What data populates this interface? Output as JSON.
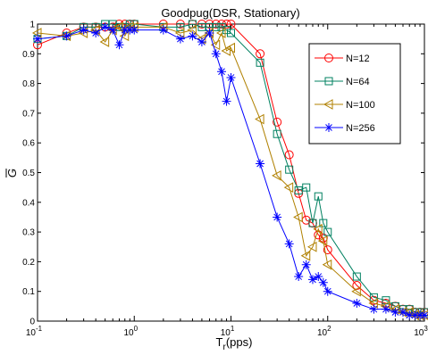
{
  "chart_data": {
    "type": "line",
    "title": "Goodpug(DSR, Stationary)",
    "xlabel": "T",
    "xlabel_sub": "r",
    "xlabel_suffix": "(pps)",
    "ylabel": "G",
    "ylabel_overline": true,
    "xscale": "log",
    "xlim": [
      0.1,
      1000
    ],
    "ylim": [
      0,
      1
    ],
    "xticks": [
      0.1,
      1,
      10,
      100,
      1000
    ],
    "xtick_labels": [
      {
        "base": "10",
        "exp": "-1"
      },
      {
        "base": "10",
        "exp": "0"
      },
      {
        "base": "10",
        "exp": "1"
      },
      {
        "base": "10",
        "exp": "2"
      },
      {
        "base": "10",
        "exp": "3"
      }
    ],
    "yticks": [
      0,
      0.1,
      0.2,
      0.3,
      0.4,
      0.5,
      0.6,
      0.7,
      0.8,
      0.9,
      1
    ],
    "ytick_labels": [
      "0",
      "0.1",
      "0.2",
      "0.3",
      "0.4",
      "0.5",
      "0.6",
      "0.7",
      "0.8",
      "0.9",
      "1"
    ],
    "grid": false,
    "legend_position": "top-right",
    "series": [
      {
        "name": "N=12",
        "color": "#ff0000",
        "marker": "circle",
        "x": [
          0.1,
          0.2,
          0.3,
          0.4,
          0.5,
          0.6,
          0.7,
          0.8,
          0.9,
          1,
          2,
          3,
          4,
          5,
          6,
          7,
          8,
          9,
          10,
          20,
          30,
          40,
          50,
          60,
          70,
          80,
          90,
          100,
          200,
          300,
          400,
          500,
          600,
          700,
          800,
          900,
          1000
        ],
        "y": [
          0.93,
          0.97,
          0.99,
          0.99,
          0.99,
          0.99,
          1.0,
          1.0,
          1.0,
          1.0,
          1.0,
          1.0,
          1.0,
          1.0,
          1.0,
          1.0,
          1.0,
          1.0,
          1.0,
          0.9,
          0.67,
          0.56,
          0.43,
          0.34,
          0.33,
          0.29,
          0.28,
          0.24,
          0.12,
          0.07,
          0.06,
          0.05,
          0.04,
          0.04,
          0.03,
          0.03,
          0.03
        ]
      },
      {
        "name": "N=64",
        "color": "#008060",
        "marker": "square",
        "x": [
          0.1,
          0.2,
          0.3,
          0.4,
          0.5,
          0.6,
          0.7,
          0.8,
          0.9,
          1,
          2,
          3,
          4,
          5,
          6,
          7,
          8,
          9,
          10,
          20,
          30,
          40,
          50,
          60,
          70,
          80,
          90,
          100,
          200,
          300,
          400,
          500,
          600,
          700,
          800,
          900,
          1000
        ],
        "y": [
          0.95,
          0.96,
          0.99,
          0.99,
          1.0,
          1.0,
          0.99,
          0.99,
          1.0,
          1.0,
          0.99,
          0.99,
          1.0,
          0.99,
          0.99,
          0.99,
          0.99,
          0.98,
          0.97,
          0.87,
          0.63,
          0.51,
          0.44,
          0.45,
          0.33,
          0.42,
          0.33,
          0.3,
          0.15,
          0.08,
          0.07,
          0.05,
          0.04,
          0.04,
          0.03,
          0.03,
          0.03
        ]
      },
      {
        "name": "N=100",
        "color": "#b08000",
        "marker": "triangle-left",
        "x": [
          0.1,
          0.2,
          0.3,
          0.4,
          0.5,
          0.6,
          0.7,
          0.8,
          0.9,
          1,
          2,
          3,
          4,
          5,
          6,
          7,
          8,
          9,
          10,
          20,
          30,
          40,
          50,
          60,
          70,
          80,
          90,
          100,
          200,
          300,
          400,
          500,
          600,
          700,
          800,
          900,
          1000
        ],
        "y": [
          0.97,
          0.96,
          0.97,
          0.98,
          0.94,
          0.98,
          0.99,
          0.96,
          0.99,
          0.99,
          0.99,
          0.97,
          0.98,
          0.95,
          0.97,
          0.93,
          0.97,
          0.91,
          0.92,
          0.68,
          0.49,
          0.45,
          0.35,
          0.22,
          0.25,
          0.31,
          0.27,
          0.19,
          0.1,
          0.06,
          0.05,
          0.04,
          0.03,
          0.03,
          0.02,
          0.02,
          0.02
        ]
      },
      {
        "name": "N=256",
        "color": "#0000ff",
        "marker": "star",
        "x": [
          0.1,
          0.2,
          0.3,
          0.4,
          0.5,
          0.6,
          0.7,
          0.8,
          0.9,
          1,
          2,
          3,
          4,
          5,
          6,
          7,
          8,
          9,
          10,
          20,
          30,
          40,
          50,
          60,
          70,
          80,
          90,
          100,
          200,
          300,
          400,
          500,
          600,
          700,
          800,
          900,
          1000
        ],
        "y": [
          0.95,
          0.96,
          0.98,
          0.97,
          0.99,
          0.98,
          0.93,
          0.98,
          0.98,
          0.98,
          0.98,
          0.95,
          0.96,
          0.94,
          0.97,
          0.9,
          0.84,
          0.74,
          0.82,
          0.53,
          0.35,
          0.26,
          0.15,
          0.19,
          0.14,
          0.15,
          0.13,
          0.1,
          0.06,
          0.04,
          0.04,
          0.03,
          0.03,
          0.02,
          0.02,
          0.02,
          0.02
        ]
      }
    ]
  }
}
